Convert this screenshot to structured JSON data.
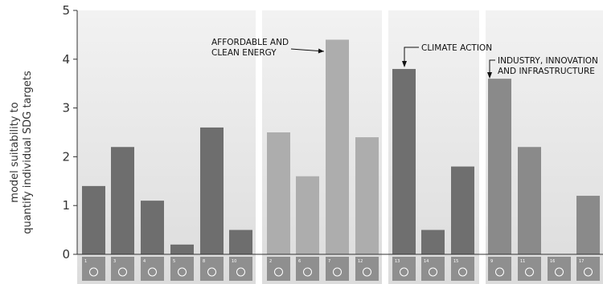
{
  "chart_data": {
    "type": "bar",
    "ylabel_lines": [
      "model suitability to",
      "quantify individual SDG targets"
    ],
    "ylim": [
      0,
      5
    ],
    "yticks": [
      "0",
      "1",
      "2",
      "3",
      "4",
      "5"
    ],
    "groups": [
      {
        "sdgs": [
          1,
          3,
          4,
          5,
          8,
          10
        ],
        "values": [
          1.4,
          2.2,
          1.1,
          0.2,
          2.6,
          0.5
        ]
      },
      {
        "sdgs": [
          2,
          6,
          7,
          12
        ],
        "values": [
          2.5,
          1.6,
          4.4,
          2.4
        ]
      },
      {
        "sdgs": [
          13,
          14,
          15
        ],
        "values": [
          3.8,
          0.5,
          1.8
        ]
      },
      {
        "sdgs": [
          9,
          11,
          16,
          17
        ],
        "values": [
          3.6,
          2.2,
          0,
          1.2
        ]
      }
    ],
    "annotations": [
      {
        "sdg": 7,
        "lines": [
          "AFFORDABLE AND",
          "CLEAN ENERGY"
        ]
      },
      {
        "sdg": 13,
        "lines": [
          "CLIMATE ACTION"
        ]
      },
      {
        "sdg": 9,
        "lines": [
          "INDUSTRY, INNOVATION",
          "AND INFRASTRUCTURE"
        ]
      }
    ],
    "grid": false,
    "legend": "none"
  },
  "colors": {
    "group_shades": [
      "#6e6e6e",
      "#adadad",
      "#6f6f6f",
      "#8a8a8a"
    ],
    "panel_fill": "#e6e6e6",
    "axis": "#333333",
    "icon_bg": "#8f8f8f"
  }
}
